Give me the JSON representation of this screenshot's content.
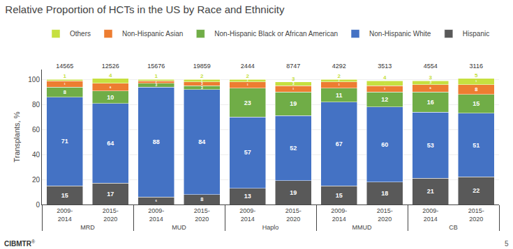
{
  "chart_data": {
    "type": "bar",
    "title": "Relative Proportion of HCTs in the US by Race and Ethnicity",
    "ylabel": "Transplants, %",
    "groups": [
      "MRD",
      "MUD",
      "Haplo",
      "MMUD",
      "CB"
    ],
    "categories": [
      "2009-\n2014",
      "2015-\n2020",
      "2009-\n2014",
      "2015-\n2020",
      "2009-\n2014",
      "2015-\n2020",
      "2009-\n2014",
      "2015-\n2020",
      "2009-\n2014",
      "2015-\n2020"
    ],
    "series": [
      {
        "name": "Hispanic",
        "color": "#595959",
        "values": [
          15,
          17,
          6,
          8,
          13,
          19,
          15,
          18,
          21,
          22
        ]
      },
      {
        "name": "Non-Hispanic White",
        "color": "#4472C4",
        "values": [
          71,
          64,
          88,
          84,
          57,
          52,
          67,
          60,
          53,
          51
        ]
      },
      {
        "name": "Non-Hispanic Black or African American",
        "color": "#70AD47",
        "values": [
          8,
          10,
          3,
          3,
          23,
          19,
          11,
          12,
          16,
          15
        ]
      },
      {
        "name": "Non-Hispanic Asian",
        "color": "#ED7D31",
        "values": [
          5,
          6,
          2,
          3,
          5,
          5,
          5,
          5,
          6,
          8
        ]
      },
      {
        "name": "Others",
        "color": "#C6E040",
        "values": [
          1,
          4,
          1,
          2,
          2,
          3,
          2,
          4,
          3,
          5
        ],
        "value_labels": [
          null,
          "4",
          null,
          "2",
          "2",
          "3",
          "2",
          "4",
          "3",
          "5"
        ]
      }
    ],
    "totals": [
      14565,
      12526,
      15676,
      19859,
      2444,
      8747,
      4292,
      3513,
      4554,
      3116
    ],
    "ylim": [
      0,
      108
    ],
    "yticks": [
      0,
      20,
      40,
      60,
      80,
      100
    ],
    "grid": true,
    "stacked": true,
    "data_labels": true,
    "legend": "top",
    "annotations": [
      "CIBMTR",
      "®",
      "5"
    ]
  }
}
